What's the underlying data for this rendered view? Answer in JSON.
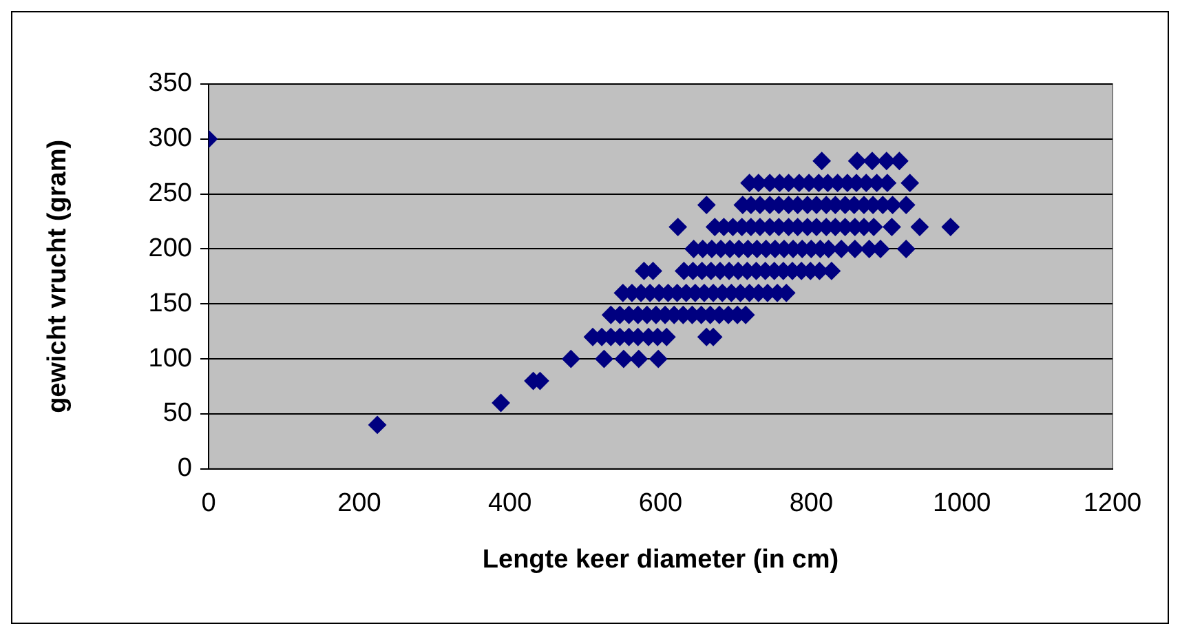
{
  "chart_data": {
    "type": "scatter",
    "xlabel": "Lengte keer diameter (in cm)",
    "ylabel": "gewicht vrucht (gram)",
    "x": [
      0,
      224,
      388,
      431,
      440,
      481,
      525,
      551,
      571,
      597,
      510,
      522,
      534,
      546,
      558,
      570,
      584,
      596,
      608,
      661,
      670,
      534,
      546,
      558,
      570,
      582,
      594,
      606,
      618,
      630,
      642,
      654,
      666,
      678,
      690,
      702,
      713,
      550,
      562,
      574,
      586,
      598,
      610,
      622,
      634,
      646,
      658,
      670,
      682,
      694,
      706,
      718,
      730,
      742,
      755,
      767,
      578,
      590,
      631,
      643,
      655,
      667,
      679,
      691,
      703,
      715,
      727,
      739,
      751,
      763,
      775,
      787,
      799,
      811,
      827,
      644,
      656,
      668,
      680,
      692,
      704,
      716,
      728,
      740,
      752,
      764,
      776,
      788,
      800,
      812,
      823,
      840,
      858,
      877,
      892,
      926,
      623,
      672,
      684,
      696,
      708,
      720,
      732,
      745,
      757,
      770,
      782,
      795,
      807,
      820,
      832,
      845,
      858,
      870,
      883,
      907,
      944,
      985,
      661,
      709,
      720,
      732,
      745,
      757,
      770,
      782,
      795,
      807,
      820,
      832,
      845,
      857,
      870,
      882,
      895,
      908,
      926,
      718,
      730,
      745,
      758,
      770,
      784,
      797,
      810,
      822,
      835,
      848,
      860,
      873,
      887,
      901,
      931,
      814,
      861,
      881,
      900,
      917
    ],
    "values": [
      300,
      40,
      60,
      80,
      80,
      100,
      100,
      100,
      100,
      100,
      120,
      120,
      120,
      120,
      120,
      120,
      120,
      120,
      120,
      120,
      120,
      140,
      140,
      140,
      140,
      140,
      140,
      140,
      140,
      140,
      140,
      140,
      140,
      140,
      140,
      140,
      140,
      160,
      160,
      160,
      160,
      160,
      160,
      160,
      160,
      160,
      160,
      160,
      160,
      160,
      160,
      160,
      160,
      160,
      160,
      160,
      180,
      180,
      180,
      180,
      180,
      180,
      180,
      180,
      180,
      180,
      180,
      180,
      180,
      180,
      180,
      180,
      180,
      180,
      180,
      200,
      200,
      200,
      200,
      200,
      200,
      200,
      200,
      200,
      200,
      200,
      200,
      200,
      200,
      200,
      200,
      200,
      200,
      200,
      200,
      200,
      220,
      220,
      220,
      220,
      220,
      220,
      220,
      220,
      220,
      220,
      220,
      220,
      220,
      220,
      220,
      220,
      220,
      220,
      220,
      220,
      220,
      220,
      240,
      240,
      240,
      240,
      240,
      240,
      240,
      240,
      240,
      240,
      240,
      240,
      240,
      240,
      240,
      240,
      240,
      240,
      240,
      260,
      260,
      260,
      260,
      260,
      260,
      260,
      260,
      260,
      260,
      260,
      260,
      260,
      260,
      260,
      260,
      280,
      280,
      280,
      280,
      280
    ],
    "color": "#000080",
    "marker": "diamond",
    "grid": "y",
    "xlim": [
      0,
      1200
    ],
    "ylim": [
      0,
      350
    ],
    "xticks": [
      0,
      200,
      400,
      600,
      800,
      1000,
      1200
    ],
    "yticks": [
      0,
      50,
      100,
      150,
      200,
      250,
      300,
      350
    ]
  }
}
